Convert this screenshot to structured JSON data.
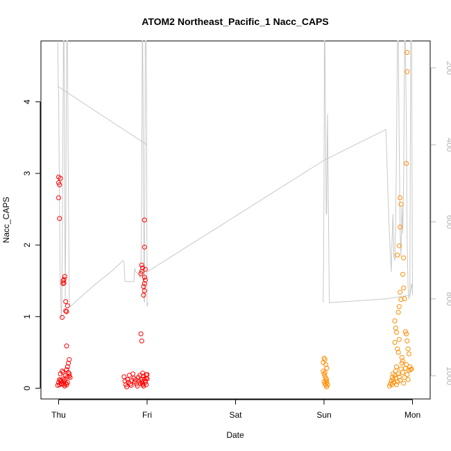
{
  "chart_data": {
    "type": "scatter",
    "title": "ATOM2 Northeast_Pacific_1 Nacc_CAPS",
    "xlabel": "Date",
    "ylabel": "Nacc_CAPS",
    "x_tick_labels": [
      "Thu",
      "Fri",
      "Sat",
      "Sun",
      "Mon"
    ],
    "x_ticks_days": [
      0,
      1,
      2,
      3,
      4
    ],
    "xlim_days": [
      -0.2,
      4.2
    ],
    "ylim": [
      -0.15,
      4.85
    ],
    "y_ticks": [
      0,
      1,
      2,
      3,
      4
    ],
    "y_tick_labels": [
      "0",
      "1",
      "2",
      "3",
      "4"
    ],
    "secondary_axis": {
      "label": "",
      "reversed": true,
      "range": [
        1060,
        130
      ],
      "ticks": [
        200,
        400,
        600,
        800,
        1000
      ],
      "tick_labels": [
        "200",
        "400",
        "600",
        "800",
        "1000"
      ],
      "color": "#b5b5b5"
    },
    "grid": false,
    "legend": "none",
    "series": [
      {
        "color": "#ff0000",
        "marker": "open-circle",
        "points": [
          [
            -0.01,
            0.04
          ],
          [
            0.0,
            0.08
          ],
          [
            0.01,
            0.12
          ],
          [
            0.02,
            0.2
          ],
          [
            0.03,
            0.06
          ],
          [
            0.01,
            2.37
          ],
          [
            0.0,
            2.66
          ],
          [
            0.01,
            2.84
          ],
          [
            0.0,
            2.87
          ],
          [
            0.02,
            2.93
          ],
          [
            0.0,
            2.95
          ],
          [
            0.04,
            0.24
          ],
          [
            0.05,
            0.22
          ],
          [
            0.06,
            0.1
          ],
          [
            0.04,
            0.99
          ],
          [
            0.05,
            1.46
          ],
          [
            0.06,
            1.47
          ],
          [
            0.05,
            1.5
          ],
          [
            0.06,
            1.52
          ],
          [
            0.07,
            1.56
          ],
          [
            0.08,
            1.08
          ],
          [
            0.09,
            1.07
          ],
          [
            0.1,
            1.15
          ],
          [
            0.08,
            1.21
          ],
          [
            0.09,
            0.59
          ],
          [
            0.1,
            0.3
          ],
          [
            0.11,
            0.35
          ],
          [
            0.12,
            0.4
          ],
          [
            0.11,
            0.22
          ],
          [
            0.12,
            0.17
          ],
          [
            0.13,
            0.15
          ],
          [
            0.08,
            0.07
          ],
          [
            0.09,
            0.05
          ],
          [
            0.1,
            0.08
          ],
          [
            0.07,
            0.12
          ],
          [
            0.06,
            0.05
          ],
          [
            0.03,
            0.1
          ],
          [
            0.05,
            0.13
          ],
          [
            0.08,
            0.18
          ],
          [
            0.1,
            0.16
          ],
          [
            0.12,
            0.2
          ],
          [
            0.09,
            0.26
          ],
          [
            0.07,
            0.03
          ],
          [
            0.04,
            0.06
          ],
          [
            0.02,
            0.11
          ],
          [
            0.01,
            0.05
          ]
        ]
      },
      {
        "color": "#ff0000",
        "marker": "open-circle",
        "points": [
          [
            0.74,
            0.16
          ],
          [
            0.75,
            0.1
          ],
          [
            0.76,
            0.05
          ],
          [
            0.77,
            0.02
          ],
          [
            0.78,
            0.12
          ],
          [
            0.79,
            0.08
          ],
          [
            0.8,
            0.18
          ],
          [
            0.81,
            0.06
          ],
          [
            0.82,
            0.04
          ],
          [
            0.83,
            0.11
          ],
          [
            0.84,
            0.2
          ],
          [
            0.85,
            0.14
          ],
          [
            0.86,
            0.09
          ],
          [
            0.87,
            0.12
          ],
          [
            0.88,
            0.06
          ],
          [
            0.89,
            0.03
          ],
          [
            0.9,
            0.15
          ],
          [
            0.91,
            0.1
          ],
          [
            0.92,
            0.07
          ],
          [
            0.93,
            0.12
          ],
          [
            0.94,
            0.09
          ],
          [
            0.95,
            0.05
          ],
          [
            0.96,
            0.17
          ],
          [
            0.97,
            0.13
          ],
          [
            0.98,
            0.08
          ],
          [
            0.99,
            0.19
          ],
          [
            0.93,
            0.76
          ],
          [
            0.94,
            0.66
          ],
          [
            0.93,
            1.6
          ],
          [
            0.94,
            1.63
          ],
          [
            0.95,
            1.68
          ],
          [
            0.94,
            1.72
          ],
          [
            0.96,
            1.3
          ],
          [
            0.97,
            1.36
          ],
          [
            0.96,
            1.42
          ],
          [
            0.97,
            1.46
          ],
          [
            0.98,
            1.51
          ],
          [
            0.97,
            1.55
          ],
          [
            0.98,
            1.66
          ],
          [
            0.97,
            1.97
          ],
          [
            0.97,
            2.35
          ],
          [
            0.95,
            0.07
          ],
          [
            0.96,
            0.03
          ],
          [
            0.98,
            0.1
          ],
          [
            0.99,
            0.05
          ],
          [
            1.0,
            0.13
          ],
          [
            1.0,
            0.19
          ],
          [
            0.99,
            0.14
          ],
          [
            0.95,
            0.21
          ],
          [
            0.92,
            0.18
          ]
        ]
      },
      {
        "color": "#ff8c00",
        "marker": "open-circle",
        "points": [
          [
            2.99,
            0.36
          ],
          [
            3.0,
            0.42
          ],
          [
            3.01,
            0.4
          ],
          [
            3.02,
            0.33
          ],
          [
            3.03,
            0.28
          ],
          [
            2.99,
            0.24
          ],
          [
            3.0,
            0.2
          ],
          [
            3.01,
            0.17
          ],
          [
            3.02,
            0.14
          ],
          [
            3.03,
            0.12
          ],
          [
            3.0,
            0.09
          ],
          [
            3.01,
            0.06
          ],
          [
            3.02,
            0.04
          ],
          [
            3.03,
            0.02
          ],
          [
            3.01,
            0.22
          ],
          [
            3.02,
            0.1
          ],
          [
            3.03,
            0.08
          ],
          [
            3.04,
            0.05
          ]
        ]
      },
      {
        "color": "#ff8c00",
        "marker": "open-circle",
        "points": [
          [
            3.74,
            0.03
          ],
          [
            3.75,
            0.06
          ],
          [
            3.76,
            0.1
          ],
          [
            3.77,
            0.15
          ],
          [
            3.78,
            0.2
          ],
          [
            3.77,
            0.05
          ],
          [
            3.78,
            0.12
          ],
          [
            3.79,
            0.08
          ],
          [
            3.8,
            0.18
          ],
          [
            3.81,
            0.24
          ],
          [
            3.82,
            0.3
          ],
          [
            3.81,
            0.14
          ],
          [
            3.82,
            0.05
          ],
          [
            3.83,
            0.09
          ],
          [
            3.84,
            0.2
          ],
          [
            3.85,
            0.16
          ],
          [
            3.86,
            0.11
          ],
          [
            3.87,
            0.27
          ],
          [
            3.88,
            0.35
          ],
          [
            3.89,
            0.22
          ],
          [
            3.9,
            0.07
          ],
          [
            3.91,
            0.15
          ],
          [
            3.92,
            0.28
          ],
          [
            3.93,
            0.33
          ],
          [
            3.94,
            0.19
          ],
          [
            3.95,
            0.12
          ],
          [
            3.96,
            0.25
          ],
          [
            3.97,
            0.3
          ],
          [
            3.98,
            0.26
          ],
          [
            3.99,
            0.27
          ],
          [
            3.8,
            0.64
          ],
          [
            3.81,
            0.84
          ],
          [
            3.82,
            0.78
          ],
          [
            3.8,
            0.94
          ],
          [
            3.83,
            0.55
          ],
          [
            3.84,
            0.5
          ],
          [
            3.85,
            0.68
          ],
          [
            3.84,
            1.06
          ],
          [
            3.85,
            1.14
          ],
          [
            3.86,
            1.34
          ],
          [
            3.87,
            1.24
          ],
          [
            3.83,
            1.86
          ],
          [
            3.85,
            1.99
          ],
          [
            3.86,
            2.25
          ],
          [
            3.87,
            2.57
          ],
          [
            3.86,
            2.66
          ],
          [
            3.9,
            1.82
          ],
          [
            3.89,
            1.59
          ],
          [
            3.9,
            1.4
          ],
          [
            3.91,
            1.25
          ],
          [
            3.92,
            0.79
          ],
          [
            3.93,
            0.76
          ],
          [
            3.94,
            0.66
          ],
          [
            3.95,
            0.55
          ],
          [
            3.96,
            0.48
          ],
          [
            3.93,
            3.14
          ],
          [
            3.94,
            4.42
          ],
          [
            3.94,
            4.69
          ],
          [
            3.88,
            0.43
          ],
          [
            3.89,
            0.38
          ]
        ]
      }
    ],
    "lines": [
      {
        "color": "#c8c8c8",
        "axis": "secondary",
        "points": [
          [
            -0.01,
            130
          ],
          [
            -0.005,
            240
          ],
          [
            0.0,
            270
          ],
          [
            0.005,
            400
          ],
          [
            0.01,
            560
          ],
          [
            0.015,
            700
          ],
          [
            0.02,
            760
          ],
          [
            0.025,
            800
          ],
          [
            0.03,
            850
          ],
          [
            0.035,
            830
          ],
          [
            0.04,
            700
          ],
          [
            0.045,
            500
          ],
          [
            0.05,
            300
          ],
          [
            0.055,
            130
          ],
          [
            0.06,
            130
          ],
          [
            0.065,
            300
          ],
          [
            0.07,
            600
          ],
          [
            0.075,
            800
          ],
          [
            0.08,
            650
          ],
          [
            0.085,
            400
          ],
          [
            0.09,
            130
          ],
          [
            0.1,
            130
          ],
          [
            0.11,
            500
          ],
          [
            0.12,
            800
          ],
          [
            0.13,
            820
          ]
        ]
      },
      {
        "color": "#c8c8c8",
        "axis": "secondary",
        "points": [
          [
            0.13,
            820
          ],
          [
            0.4,
            765
          ],
          [
            0.6,
            728
          ],
          [
            0.73,
            700
          ]
        ]
      },
      {
        "color": "#c8c8c8",
        "axis": "secondary",
        "points": [
          [
            0.73,
            700
          ],
          [
            0.74,
            705
          ],
          [
            0.75,
            755
          ],
          [
            0.8,
            755
          ],
          [
            0.85,
            755
          ],
          [
            0.86,
            720
          ],
          [
            0.87,
            730
          ],
          [
            0.9,
            735
          ],
          [
            0.92,
            745
          ],
          [
            0.93,
            740
          ],
          [
            0.94,
            500
          ],
          [
            0.945,
            130
          ],
          [
            0.95,
            130
          ],
          [
            0.955,
            300
          ],
          [
            0.96,
            600
          ],
          [
            0.965,
            800
          ],
          [
            0.97,
            810
          ],
          [
            0.975,
            500
          ],
          [
            0.98,
            130
          ],
          [
            0.99,
            130
          ],
          [
            0.995,
            380
          ],
          [
            1.0,
            820
          ],
          [
            1.01,
            810
          ]
        ]
      },
      {
        "color": "#c8c8c8",
        "axis": "secondary",
        "points": [
          [
            -0.01,
            248
          ],
          [
            1.0,
            400
          ]
        ]
      },
      {
        "color": "#c8c8c8",
        "axis": "secondary",
        "points": [
          [
            1.0,
            730
          ],
          [
            3.0,
            440
          ],
          [
            3.7,
            360
          ]
        ]
      },
      {
        "color": "#c8c8c8",
        "axis": "secondary",
        "points": [
          [
            2.99,
            810
          ],
          [
            2.995,
            690
          ],
          [
            3.0,
            500
          ],
          [
            3.005,
            130
          ],
          [
            3.01,
            130
          ],
          [
            3.015,
            300
          ],
          [
            3.02,
            470
          ],
          [
            3.025,
            580
          ],
          [
            3.03,
            580
          ],
          [
            3.035,
            420
          ],
          [
            3.04,
            320
          ],
          [
            3.05,
            580
          ],
          [
            3.06,
            810
          ],
          [
            3.7,
            800
          ],
          [
            3.97,
            790
          ],
          [
            3.98,
            780
          ],
          [
            3.99,
            760
          ],
          [
            4.0,
            780
          ]
        ]
      },
      {
        "color": "#c8c8c8",
        "axis": "secondary",
        "points": [
          [
            3.7,
            360
          ],
          [
            3.73,
            580
          ],
          [
            3.75,
            680
          ],
          [
            3.76,
            730
          ],
          [
            3.77,
            640
          ],
          [
            3.78,
            580
          ],
          [
            3.79,
            690
          ],
          [
            3.8,
            700
          ],
          [
            3.81,
            600
          ],
          [
            3.82,
            400
          ],
          [
            3.83,
            130
          ],
          [
            3.84,
            130
          ],
          [
            3.85,
            400
          ],
          [
            3.86,
            620
          ],
          [
            3.87,
            690
          ],
          [
            3.88,
            560
          ],
          [
            3.89,
            630
          ],
          [
            3.9,
            500
          ],
          [
            3.91,
            130
          ],
          [
            3.92,
            130
          ],
          [
            3.93,
            350
          ],
          [
            3.94,
            640
          ],
          [
            3.95,
            770
          ],
          [
            3.96,
            800
          ],
          [
            3.97,
            790
          ],
          [
            3.98,
            130
          ],
          [
            3.99,
            130
          ],
          [
            4.0,
            790
          ]
        ]
      }
    ]
  }
}
